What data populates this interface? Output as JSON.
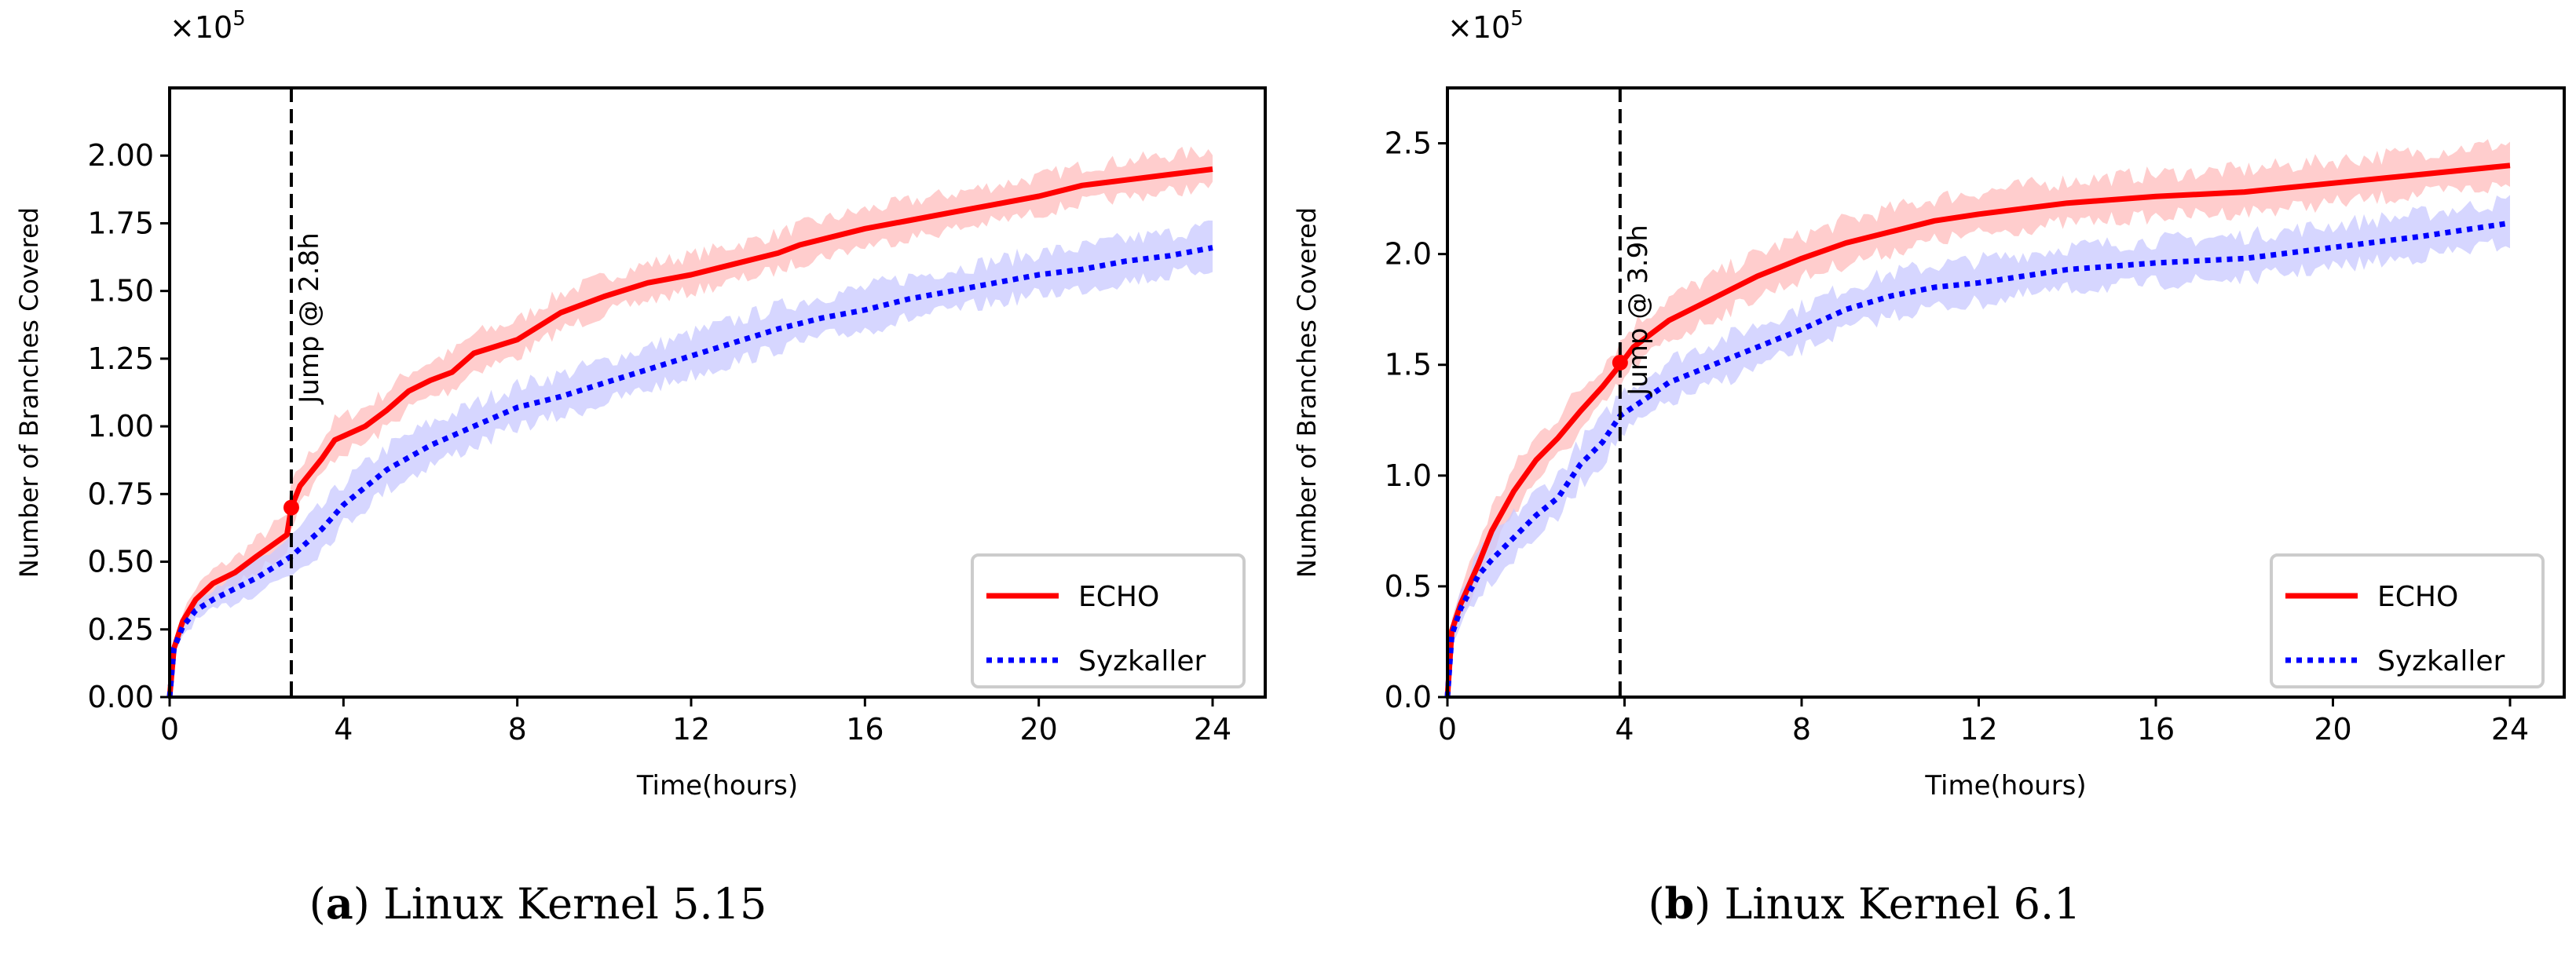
{
  "chart_data": [
    {
      "type": "line",
      "caption_tag": "a",
      "caption": "Linux Kernel 5.15",
      "xlabel": "Time(hours)",
      "ylabel": "Number of Branches Covered",
      "y_multiplier": "×10",
      "y_multiplier_exp": "5",
      "xlim": [
        0,
        24
      ],
      "ylim": [
        0,
        2.25
      ],
      "xticks": [
        0,
        4,
        8,
        12,
        16,
        20,
        24
      ],
      "xtick_labels": [
        "0",
        "4",
        "8",
        "12",
        "16",
        "20",
        "24"
      ],
      "yticks": [
        0,
        0.25,
        0.5,
        0.75,
        1.0,
        1.25,
        1.5,
        1.75,
        2.0
      ],
      "ytick_labels": [
        "0.00",
        "0.25",
        "0.50",
        "0.75",
        "1.00",
        "1.25",
        "1.50",
        "1.75",
        "2.00"
      ],
      "grid": false,
      "legend_position": "bottom-right",
      "annotation": {
        "text": "Jump @ 2.8h",
        "x": 2.8,
        "y": 0.7
      },
      "series": [
        {
          "name": "ECHO",
          "color": "#ff0000",
          "band_color": "#ffbcbc",
          "style": "solid",
          "x": [
            0,
            0.1,
            0.3,
            0.6,
            1,
            1.5,
            2,
            2.7,
            2.8,
            3,
            3.5,
            3.8,
            4.5,
            5,
            5.5,
            6,
            6.5,
            7,
            8,
            9,
            10,
            11,
            12,
            13,
            14,
            14.5,
            16,
            17,
            18,
            19,
            20,
            21,
            22,
            23,
            24
          ],
          "y": [
            0,
            0.18,
            0.28,
            0.36,
            0.42,
            0.46,
            0.52,
            0.6,
            0.7,
            0.78,
            0.88,
            0.95,
            1.0,
            1.06,
            1.13,
            1.17,
            1.2,
            1.27,
            1.32,
            1.42,
            1.48,
            1.53,
            1.56,
            1.6,
            1.64,
            1.67,
            1.73,
            1.76,
            1.79,
            1.82,
            1.85,
            1.89,
            1.91,
            1.93,
            1.95
          ],
          "band": 0.07
        },
        {
          "name": "Syzkaller",
          "color": "#0000ff",
          "band_color": "#c8c8ff",
          "style": "dotted",
          "x": [
            0,
            0.1,
            0.3,
            0.6,
            1,
            1.5,
            2,
            2.8,
            3.5,
            4,
            5,
            6,
            7,
            8,
            9,
            10,
            11,
            12,
            13,
            14,
            15,
            16,
            17,
            18,
            19,
            20,
            21,
            22,
            23,
            24
          ],
          "y": [
            0,
            0.18,
            0.26,
            0.32,
            0.36,
            0.4,
            0.44,
            0.52,
            0.62,
            0.71,
            0.84,
            0.93,
            1.0,
            1.07,
            1.11,
            1.16,
            1.21,
            1.26,
            1.31,
            1.36,
            1.4,
            1.43,
            1.47,
            1.5,
            1.53,
            1.56,
            1.58,
            1.61,
            1.63,
            1.66
          ],
          "band": 0.08
        }
      ]
    },
    {
      "type": "line",
      "caption_tag": "b",
      "caption": "Linux Kernel 6.1",
      "xlabel": "Time(hours)",
      "ylabel": "Number of Branches Covered",
      "y_multiplier": "×10",
      "y_multiplier_exp": "5",
      "xlim": [
        0,
        24
      ],
      "ylim": [
        0,
        2.75
      ],
      "xticks": [
        0,
        4,
        8,
        12,
        16,
        20,
        24
      ],
      "xtick_labels": [
        "0",
        "4",
        "8",
        "12",
        "16",
        "20",
        "24"
      ],
      "yticks": [
        0,
        0.5,
        1.0,
        1.5,
        2.0,
        2.5
      ],
      "ytick_labels": [
        "0.0",
        "0.5",
        "1.0",
        "1.5",
        "2.0",
        "2.5"
      ],
      "grid": false,
      "legend_position": "bottom-right",
      "annotation": {
        "text": "Jump @ 3.9h",
        "x": 3.9,
        "y": 1.51
      },
      "series": [
        {
          "name": "ECHO",
          "color": "#ff0000",
          "band_color": "#ffbcbc",
          "style": "solid",
          "x": [
            0,
            0.1,
            0.3,
            0.7,
            1,
            1.5,
            2,
            2.5,
            3,
            3.5,
            3.9,
            4.2,
            5,
            6,
            7,
            8,
            9,
            10,
            11,
            12,
            14,
            16,
            18,
            20,
            22,
            24
          ],
          "y": [
            0,
            0.3,
            0.42,
            0.6,
            0.75,
            0.93,
            1.07,
            1.17,
            1.29,
            1.4,
            1.5,
            1.58,
            1.7,
            1.8,
            1.9,
            1.98,
            2.05,
            2.1,
            2.15,
            2.18,
            2.23,
            2.26,
            2.28,
            2.32,
            2.36,
            2.4
          ],
          "band": 0.1
        },
        {
          "name": "Syzkaller",
          "color": "#0000ff",
          "band_color": "#c8c8ff",
          "style": "dotted",
          "x": [
            0,
            0.1,
            0.3,
            0.7,
            1,
            1.5,
            2,
            2.5,
            3,
            3.5,
            3.9,
            4.5,
            5,
            6,
            7,
            8,
            9,
            10,
            11,
            12,
            14,
            16,
            18,
            20,
            22,
            24
          ],
          "y": [
            0,
            0.28,
            0.4,
            0.55,
            0.62,
            0.72,
            0.82,
            0.9,
            1.05,
            1.15,
            1.27,
            1.35,
            1.42,
            1.5,
            1.58,
            1.66,
            1.75,
            1.81,
            1.85,
            1.87,
            1.93,
            1.96,
            1.98,
            2.03,
            2.08,
            2.14
          ],
          "band": 0.1
        }
      ]
    }
  ]
}
